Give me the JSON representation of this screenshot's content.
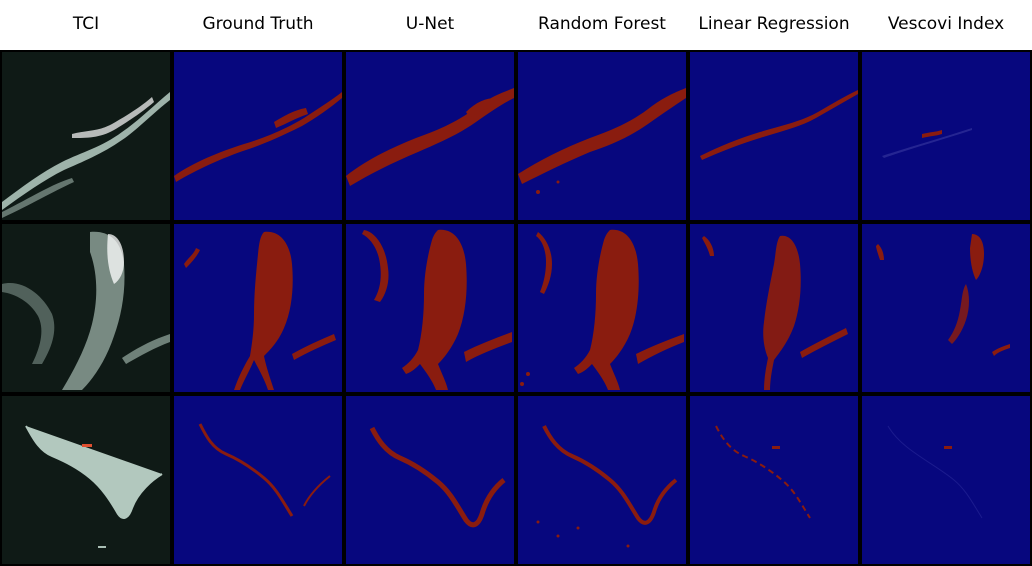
{
  "columns": [
    "TCI",
    "Ground Truth",
    "U-Net",
    "Random Forest",
    "Linear Regression",
    "Vescovi Index"
  ],
  "rows": 3,
  "colors": {
    "tci_background": "#0f1a16",
    "tci_foreground": "#cfe7dc",
    "mask_background": "#07077e",
    "mask_foreground": "#8a1c0f",
    "separator": "#000000"
  }
}
